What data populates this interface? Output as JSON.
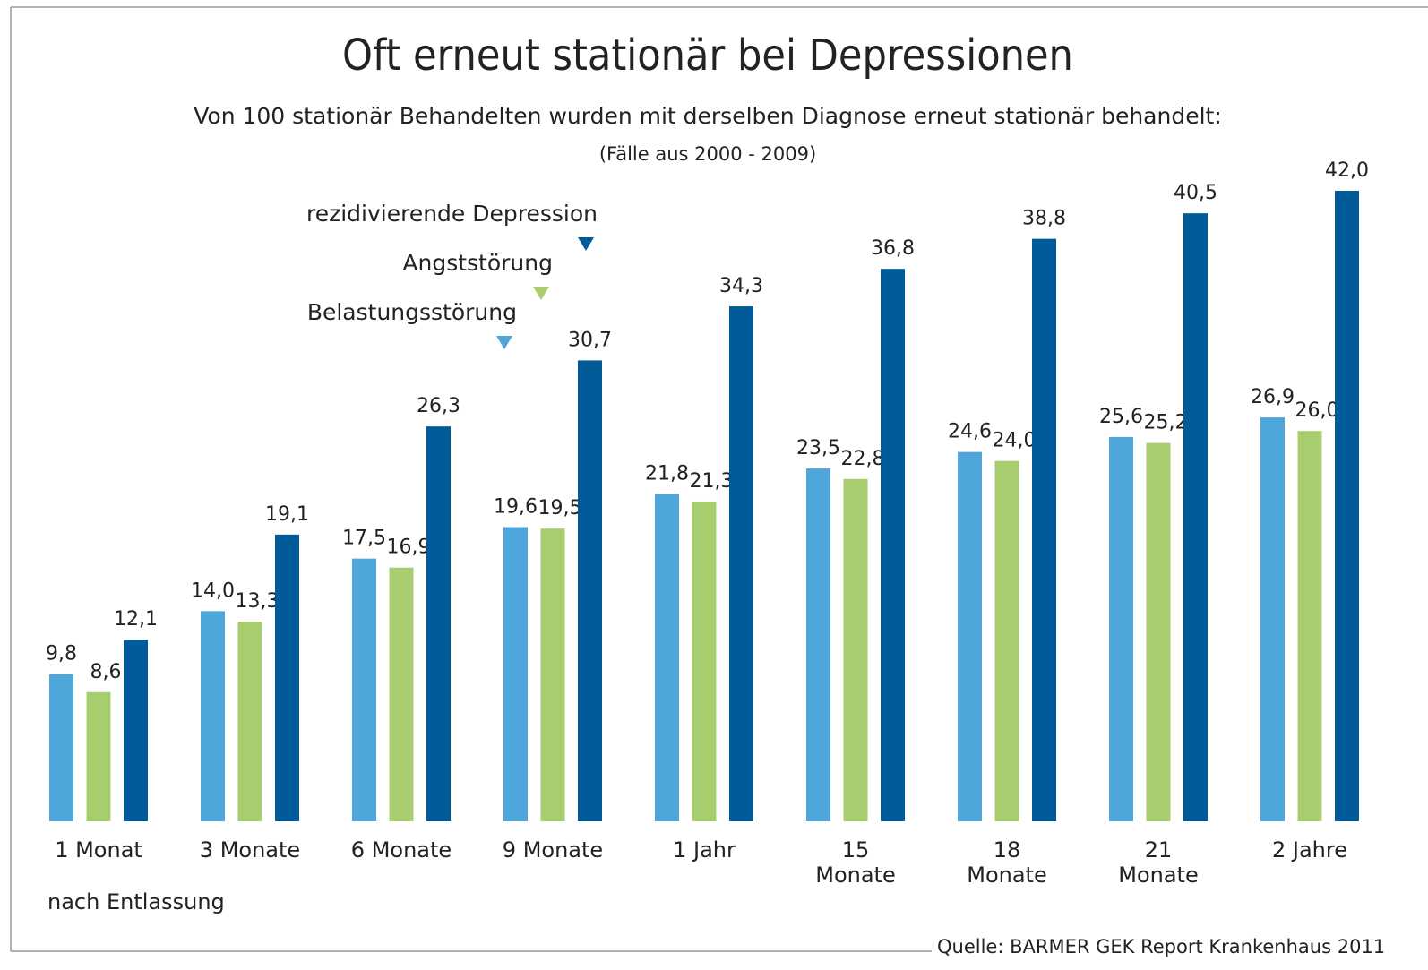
{
  "chart_data": {
    "type": "bar",
    "title": "Oft erneut stationär bei Depressionen",
    "subtitle": "Von 100 stationär Behandelten wurden mit derselben Diagnose erneut stationär behandelt:",
    "note": "(Fälle aus 2000 - 2009)",
    "x_label": "nach Entlassung",
    "source": "Quelle: BARMER GEK Report Krankenhaus 2011",
    "categories": [
      [
        "1 Monat"
      ],
      [
        "3 Monate"
      ],
      [
        "6 Monate"
      ],
      [
        "9 Monate"
      ],
      [
        "1 Jahr"
      ],
      [
        "15",
        "Monate"
      ],
      [
        "18",
        "Monate"
      ],
      [
        "21",
        "Monate"
      ],
      [
        "2 Jahre"
      ]
    ],
    "series": [
      {
        "name": "Belastungsstörung",
        "color": "#4fa6da",
        "values": [
          9.8,
          14.0,
          17.5,
          19.6,
          21.8,
          23.5,
          24.6,
          25.6,
          26.9
        ],
        "value_labels": [
          "9,8",
          "14,0",
          "17,5",
          "19,6",
          "21,8",
          "23,5",
          "24,6",
          "25,6",
          "26,9"
        ]
      },
      {
        "name": "Angststörung",
        "color": "#a7cd6f",
        "values": [
          8.6,
          13.3,
          16.9,
          19.5,
          21.3,
          22.8,
          24.0,
          25.2,
          26.0
        ],
        "value_labels": [
          "8,6",
          "13,3",
          "16,9",
          "19,5",
          "21,3",
          "22,8",
          "24,0",
          "25,2",
          "26,0"
        ]
      },
      {
        "name": "rezidivierende Depression",
        "color": "#005b98",
        "values": [
          12.1,
          19.1,
          26.3,
          30.7,
          34.3,
          36.8,
          38.8,
          40.5,
          42.0
        ],
        "value_labels": [
          "12,1",
          "19,1",
          "26,3",
          "30,7",
          "34,3",
          "36,8",
          "38,8",
          "40,5",
          "42,0"
        ]
      }
    ]
  }
}
